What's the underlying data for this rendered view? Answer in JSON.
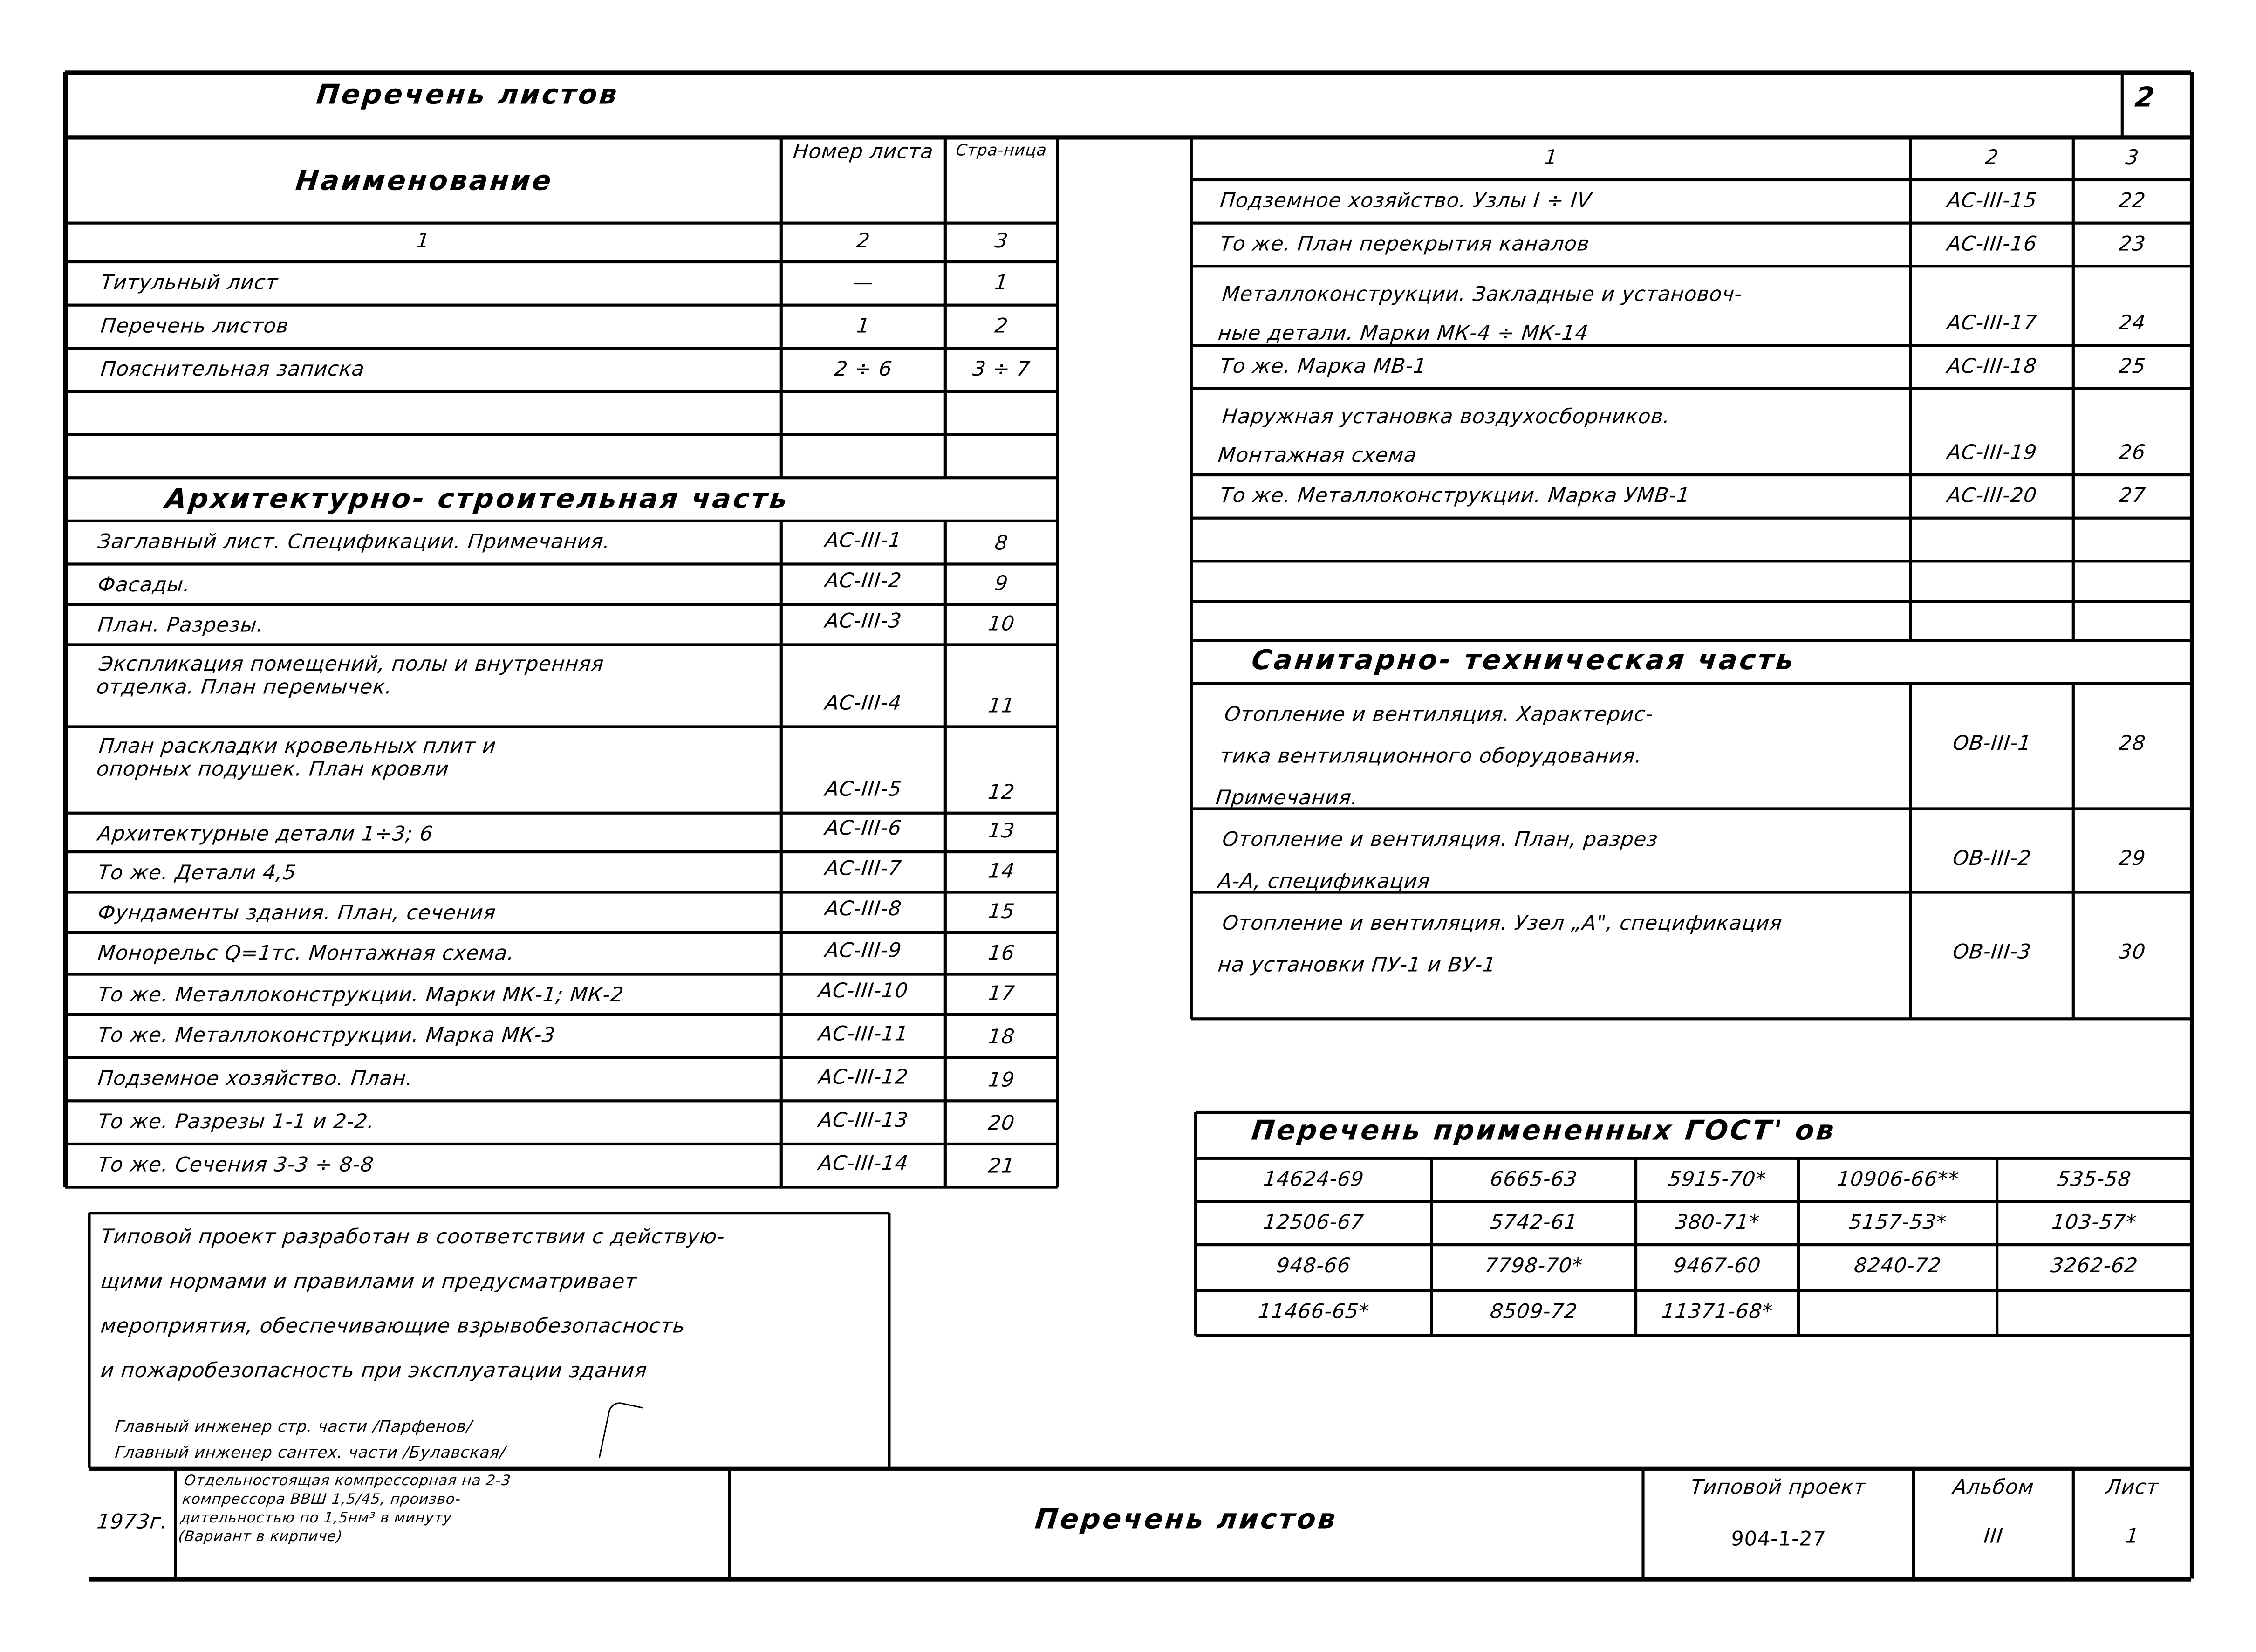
{
  "title": "Перечень листов",
  "sheet_corner_number": "2",
  "left_table": {
    "headers": {
      "name": "Наименование",
      "number": "Номер листа",
      "page": "Стра-ница"
    },
    "column_numbers": [
      "1",
      "2",
      "3"
    ],
    "rows": [
      {
        "name": "Титульный лист",
        "number": "—",
        "page": "1"
      },
      {
        "name": "Перечень листов",
        "number": "1",
        "page": "2"
      },
      {
        "name": "Пояснительная записка",
        "number": "2 ÷ 6",
        "page": "3 ÷ 7"
      },
      {
        "name": "",
        "number": "",
        "page": ""
      },
      {
        "name": "",
        "number": "",
        "page": ""
      }
    ],
    "section": "Архитектурно- строительная часть",
    "section_rows": [
      {
        "name": "Заглавный лист. Спецификации. Примечания.",
        "number": "АС-III-1",
        "page": "8"
      },
      {
        "name": "Фасады.",
        "number": "АС-III-2",
        "page": "9"
      },
      {
        "name": "План. Разрезы.",
        "number": "АС-III-3",
        "page": "10"
      },
      {
        "name": "Экспликация помещений, полы и внутренняя\nотделка. План перемычек.",
        "number": "АС-III-4",
        "page": "11"
      },
      {
        "name": "План раскладки кровельных плит и\nопорных подушек. План кровли",
        "number": "АС-III-5",
        "page": "12"
      },
      {
        "name": "Архитектурные детали 1÷3; 6",
        "number": "АС-III-6",
        "page": "13"
      },
      {
        "name": "То же. Детали 4,5",
        "number": "АС-III-7",
        "page": "14"
      },
      {
        "name": "Фундаменты здания. План, сечения",
        "number": "АС-III-8",
        "page": "15"
      },
      {
        "name": "Монорельс Q=1тс. Монтажная схема.",
        "number": "АС-III-9",
        "page": "16"
      },
      {
        "name": "То же. Металлоконструкции. Марки МК-1; МК-2",
        "number": "АС-III-10",
        "page": "17"
      },
      {
        "name": "То же. Металлоконструкции. Марка МК-3",
        "number": "АС-III-11",
        "page": "18"
      },
      {
        "name": "Подземное хозяйство. План.",
        "number": "АС-III-12",
        "page": "19"
      },
      {
        "name": "То же. Разрезы 1-1 и 2-2.",
        "number": "АС-III-13",
        "page": "20"
      },
      {
        "name": "То же. Сечения 3-3 ÷ 8-8",
        "number": "АС-III-14",
        "page": "21"
      }
    ]
  },
  "right_table": {
    "column_numbers": [
      "1",
      "2",
      "3"
    ],
    "rows": [
      {
        "name": "Подземное хозяйство. Узлы I ÷ IV",
        "number": "АС-III-15",
        "page": "22"
      },
      {
        "name": "То же. План перекрытия каналов",
        "number": "АС-III-16",
        "page": "23"
      },
      {
        "name": "Металлоконструкции. Закладные и установоч-\nные детали. Марки МК-4 ÷ МК-14",
        "number": "АС-III-17",
        "page": "24"
      },
      {
        "name": "То же. Марка МВ-1",
        "number": "АС-III-18",
        "page": "25"
      },
      {
        "name": "Наружная установка воздухосборников.\nМонтажная схема",
        "number": "АС-III-19",
        "page": "26"
      },
      {
        "name": "То же. Металлоконструкции. Марка УМВ-1",
        "number": "АС-III-20",
        "page": "27"
      },
      {
        "name": "",
        "number": "",
        "page": ""
      },
      {
        "name": "",
        "number": "",
        "page": ""
      },
      {
        "name": "",
        "number": "",
        "page": ""
      }
    ],
    "section": "Санитарно- техническая часть",
    "section_rows": [
      {
        "name": "Отопление и вентиляция. Характерис-\nтика вентиляционного оборудования.\nПримечания.",
        "number": "ОВ-III-1",
        "page": "28"
      },
      {
        "name": "Отопление и вентиляция. План, разрез\nА-А, спецификация",
        "number": "ОВ-III-2",
        "page": "29"
      },
      {
        "name": "Отопление и вентиляция. Узел „А\", спецификация\nна установки ПУ-1 и ВУ-1",
        "number": "ОВ-III-3",
        "page": "30"
      }
    ]
  },
  "gost_table": {
    "title": "Перечень примененных ГОСТ' ов",
    "rows": [
      [
        "14624-69",
        "6665-63",
        "5915-70*",
        "10906-66**",
        "535-58"
      ],
      [
        "12506-67",
        "5742-61",
        "380-71*",
        "5157-53*",
        "103-57*"
      ],
      [
        "948-66",
        "7798-70*",
        "9467-60",
        "8240-72",
        "3262-62"
      ],
      [
        "11466-65*",
        "8509-72",
        "11371-68*",
        "",
        ""
      ]
    ]
  },
  "note": {
    "lines": [
      "Типовой проект разработан в соответствии с действую-",
      "щими нормами и правилами и предусматривает",
      "мероприятия, обеспечивающие взрывобезопасность",
      "и пожаробезопасность при эксплуатации здания"
    ],
    "signatures": [
      "Главный инженер стр. части /Парфенов/",
      "Главный инженер сантех. части /Булавская/"
    ]
  },
  "title_block": {
    "year": "1973г.",
    "description": "Отдельностоящая компрессорная на 2-3\nкомпрессора ВВШ 1,5/45, произво-\nдительностью по 1,5нм³ в минуту\n(Вариант в кирпиче)",
    "sheet_title": "Перечень листов",
    "project_label": "Типовой проект",
    "project_value": "904-1-27",
    "album_label": "Альбом",
    "album_value": "III",
    "sheet_label": "Лист",
    "sheet_value": "1"
  }
}
